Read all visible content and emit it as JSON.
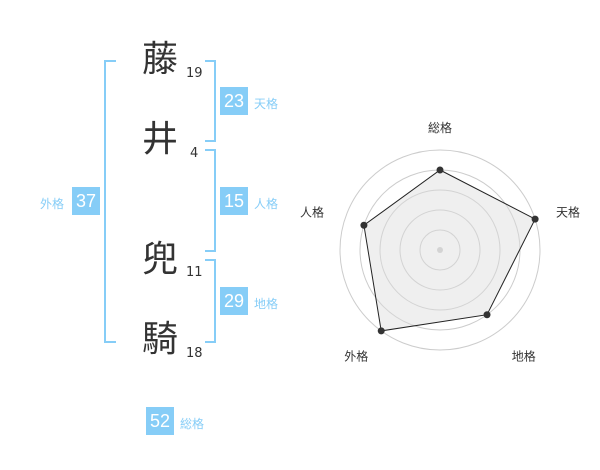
{
  "name": [
    {
      "char": "藤",
      "strokes": "19"
    },
    {
      "char": "井",
      "strokes": "4"
    },
    {
      "char": "兜",
      "strokes": "11"
    },
    {
      "char": "騎",
      "strokes": "18"
    }
  ],
  "fortunes": {
    "tenkaku": {
      "value": "23",
      "label": "天格"
    },
    "jinkaku": {
      "value": "15",
      "label": "人格"
    },
    "chikaku": {
      "value": "29",
      "label": "地格"
    },
    "gaikaku": {
      "value": "37",
      "label": "外格"
    },
    "soukaku": {
      "value": "52",
      "label": "総格"
    }
  },
  "accent_color": "#86cdf7",
  "chart_data": {
    "type": "radar",
    "axes": [
      "総格",
      "天格",
      "地格",
      "外格",
      "人格"
    ],
    "values": [
      4,
      5,
      4,
      5,
      4
    ],
    "range": [
      0,
      5
    ]
  }
}
